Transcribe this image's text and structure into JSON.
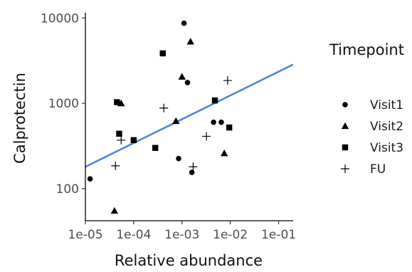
{
  "chart_data": {
    "type": "scatter",
    "xlabel": "Relative abundance",
    "ylabel": "Calprotectin",
    "xscale": "log10",
    "yscale": "log10",
    "xlim": [
      1e-05,
      0.2
    ],
    "ylim": [
      42,
      11500
    ],
    "x_ticks": [
      {
        "value": 1e-05,
        "label": "1e-05"
      },
      {
        "value": 0.0001,
        "label": "1e-04"
      },
      {
        "value": 0.001,
        "label": "1e-03"
      },
      {
        "value": 0.01,
        "label": "1e-02"
      },
      {
        "value": 0.1,
        "label": "1e-01"
      }
    ],
    "y_ticks": [
      {
        "value": 100,
        "label": "100"
      },
      {
        "value": 1000,
        "label": "1000"
      },
      {
        "value": 10000,
        "label": "10000"
      }
    ],
    "grid": false,
    "legend": {
      "title": "Timepoint",
      "position": "right",
      "entries": [
        {
          "label": "Visit1",
          "shape": "circle"
        },
        {
          "label": "Visit2",
          "shape": "triangle"
        },
        {
          "label": "Visit3",
          "shape": "square"
        },
        {
          "label": "FU",
          "shape": "plus"
        }
      ]
    },
    "trend_line": {
      "color": "#4f83e0",
      "x": [
        1e-05,
        0.2
      ],
      "y": [
        180,
        2850
      ]
    },
    "series": [
      {
        "name": "Visit1",
        "shape": "circle",
        "points": [
          {
            "x": 1.25e-05,
            "y": 130
          },
          {
            "x": 0.00085,
            "y": 225
          },
          {
            "x": 0.0011,
            "y": 8700
          },
          {
            "x": 0.0013,
            "y": 1750
          },
          {
            "x": 0.0016,
            "y": 155
          },
          {
            "x": 0.0045,
            "y": 600
          },
          {
            "x": 0.0065,
            "y": 600
          }
        ]
      },
      {
        "name": "Visit2",
        "shape": "triangle",
        "points": [
          {
            "x": 4e-05,
            "y": 55
          },
          {
            "x": 5.5e-05,
            "y": 1000
          },
          {
            "x": 0.00075,
            "y": 620
          },
          {
            "x": 0.001,
            "y": 2050
          },
          {
            "x": 0.0015,
            "y": 5300
          },
          {
            "x": 0.0075,
            "y": 260
          }
        ]
      },
      {
        "name": "Visit3",
        "shape": "square",
        "points": [
          {
            "x": 4.5e-05,
            "y": 1030
          },
          {
            "x": 5e-05,
            "y": 440
          },
          {
            "x": 0.0001,
            "y": 370
          },
          {
            "x": 0.00028,
            "y": 300
          },
          {
            "x": 0.0004,
            "y": 3850
          },
          {
            "x": 0.0048,
            "y": 1080
          },
          {
            "x": 0.0095,
            "y": 520
          }
        ]
      },
      {
        "name": "FU",
        "shape": "plus",
        "points": [
          {
            "x": 4.2e-05,
            "y": 185
          },
          {
            "x": 5.5e-05,
            "y": 370
          },
          {
            "x": 0.00042,
            "y": 880
          },
          {
            "x": 0.0017,
            "y": 180
          },
          {
            "x": 0.0032,
            "y": 410
          },
          {
            "x": 0.0088,
            "y": 1850
          }
        ]
      }
    ]
  }
}
